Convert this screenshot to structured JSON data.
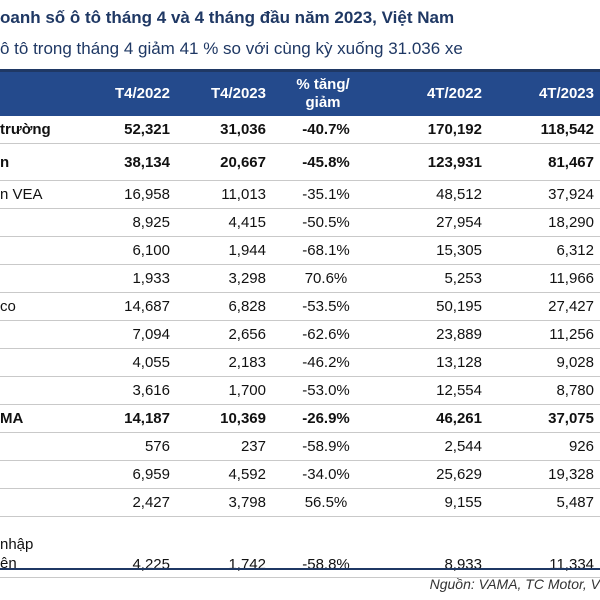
{
  "title": "oanh số ô tô tháng 4 và 4 tháng đầu năm 2023, Việt Nam",
  "subtitle": "ô tô  trong tháng 4 giảm 41 % so với cùng kỳ xuống 31.036 xe",
  "table": {
    "headers": [
      "",
      "T4/2022",
      "T4/2023",
      "% tăng/\ngiảm",
      "4T/2022",
      "4T/2023"
    ],
    "rows": [
      {
        "label": "trường",
        "t4_2022": "52,321",
        "t4_2023": "31,036",
        "pct": "-40.7%",
        "4t_2022": "170,192",
        "4t_2023": "118,542",
        "bold": true
      },
      {
        "label": "n",
        "t4_2022": "38,134",
        "t4_2023": "20,667",
        "pct": "-45.8%",
        "4t_2022": "123,931",
        "4t_2023": "81,467",
        "bold": true
      },
      {
        "label": "n VEA",
        "t4_2022": "16,958",
        "t4_2023": "11,013",
        "pct": "-35.1%",
        "4t_2022": "48,512",
        "4t_2023": "37,924"
      },
      {
        "label": "",
        "t4_2022": "8,925",
        "t4_2023": "4,415",
        "pct": "-50.5%",
        "4t_2022": "27,954",
        "4t_2023": "18,290"
      },
      {
        "label": "",
        "t4_2022": "6,100",
        "t4_2023": "1,944",
        "pct": "-68.1%",
        "4t_2022": "15,305",
        "4t_2023": "6,312"
      },
      {
        "label": "",
        "t4_2022": "1,933",
        "t4_2023": "3,298",
        "pct": "70.6%",
        "4t_2022": "5,253",
        "4t_2023": "11,966"
      },
      {
        "label": "co",
        "t4_2022": "14,687",
        "t4_2023": "6,828",
        "pct": "-53.5%",
        "4t_2022": "50,195",
        "4t_2023": "27,427"
      },
      {
        "label": "",
        "t4_2022": "7,094",
        "t4_2023": "2,656",
        "pct": "-62.6%",
        "4t_2022": "23,889",
        "4t_2023": "11,256"
      },
      {
        "label": "",
        "t4_2022": "4,055",
        "t4_2023": "2,183",
        "pct": "-46.2%",
        "4t_2022": "13,128",
        "4t_2023": "9,028"
      },
      {
        "label": "",
        "t4_2022": "3,616",
        "t4_2023": "1,700",
        "pct": "-53.0%",
        "4t_2022": "12,554",
        "4t_2023": "8,780"
      },
      {
        "label": "MA",
        "t4_2022": "14,187",
        "t4_2023": "10,369",
        "pct": "-26.9%",
        "4t_2022": "46,261",
        "4t_2023": "37,075",
        "bold": true
      },
      {
        "label": "",
        "t4_2022": "576",
        "t4_2023": "237",
        "pct": "-58.9%",
        "4t_2022": "2,544",
        "4t_2023": "926"
      },
      {
        "label": "",
        "t4_2022": "6,959",
        "t4_2023": "4,592",
        "pct": "-34.0%",
        "4t_2022": "25,629",
        "4t_2023": "19,328"
      },
      {
        "label": "",
        "t4_2022": "2,427",
        "t4_2023": "3,798",
        "pct": "56.5%",
        "4t_2022": "9,155",
        "4t_2023": "5,487"
      },
      {
        "label": " nhập\nên",
        "t4_2022": "4,225",
        "t4_2023": "1,742",
        "pct": "-58.8%",
        "4t_2022": "8,933",
        "4t_2023": "11,334"
      }
    ]
  },
  "source": "Nguồn: VAMA, TC Motor, V"
}
